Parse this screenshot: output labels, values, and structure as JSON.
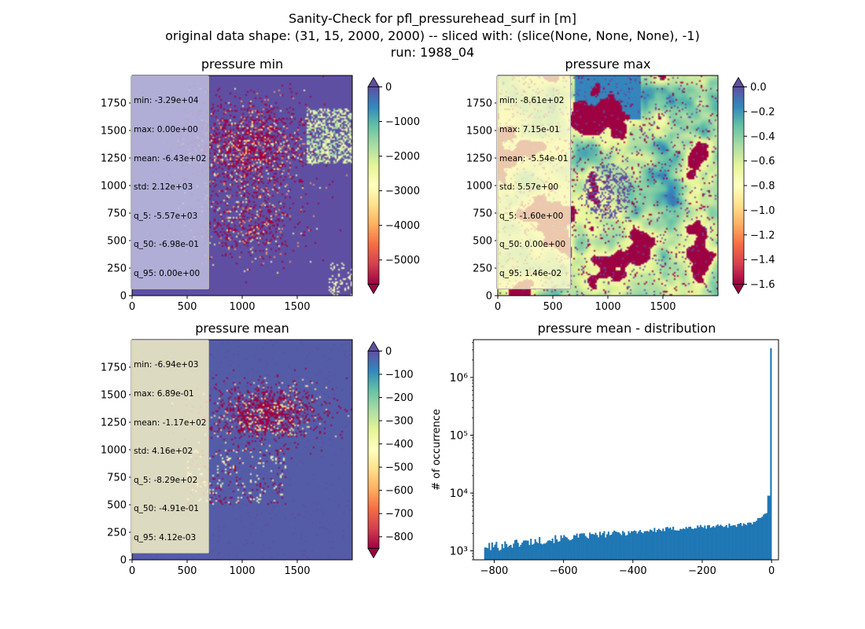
{
  "figure": {
    "title_lines": [
      "Sanity-Check for pfl_pressurehead_surf in [m]",
      "original data shape: (31, 15, 2000, 2000) -- sliced with: (slice(None, None, None), -1)",
      "run: 1988_04"
    ]
  },
  "colors": {
    "spectral": [
      "#9e0142",
      "#d53e4f",
      "#f46d43",
      "#fdae61",
      "#fee08b",
      "#ffffbf",
      "#e6f598",
      "#abdda4",
      "#66c2a5",
      "#3288bd",
      "#5e4fa2"
    ],
    "histogram_bar": "#1f77b4"
  },
  "chart_data": [
    {
      "type": "heatmap",
      "title": "pressure min",
      "xlim": [
        0,
        2000
      ],
      "ylim": [
        0,
        2000
      ],
      "xticks": [
        0,
        500,
        1000,
        1500
      ],
      "yticks": [
        0,
        250,
        500,
        750,
        1000,
        1250,
        1500,
        1750
      ],
      "colorbar": {
        "min": -5700,
        "max": 0,
        "ticks": [
          0,
          -1000,
          -2000,
          -3000,
          -4000,
          -5000
        ],
        "tick_labels": [
          "0",
          "−1000",
          "−2000",
          "−3000",
          "−4000",
          "−5000"
        ],
        "extend": "both"
      },
      "stats": [
        "min: -3.29e+04",
        "max: 0.00e+00",
        "mean: -6.43e+02",
        "std: 2.12e+03",
        "q_5: -5.57e+03",
        "q_50: -6.98e-01",
        "q_95: 0.00e+00"
      ],
      "background_value": 0
    },
    {
      "type": "heatmap",
      "title": "pressure max",
      "xlim": [
        0,
        2000
      ],
      "ylim": [
        0,
        2000
      ],
      "xticks": [
        0,
        500,
        1000,
        1500
      ],
      "yticks": [
        0,
        250,
        500,
        750,
        1000,
        1250,
        1500,
        1750
      ],
      "colorbar": {
        "min": -1.6,
        "max": 0.0,
        "ticks": [
          0.0,
          -0.2,
          -0.4,
          -0.6,
          -0.8,
          -1.0,
          -1.2,
          -1.4,
          -1.6
        ],
        "tick_labels": [
          "0.0",
          "−0.2",
          "−0.4",
          "−0.6",
          "−0.8",
          "−1.0",
          "−1.2",
          "−1.4",
          "−1.6"
        ],
        "extend": "both"
      },
      "stats": [
        "min: -8.61e+02",
        "max: 7.15e-01",
        "mean: -5.54e-01",
        "std: 5.57e+00",
        "q_5: -1.60e+00",
        "q_50: 0.00e+00",
        "q_95: 1.46e-02"
      ],
      "background_value": -0.3
    },
    {
      "type": "heatmap",
      "title": "pressure mean",
      "xlim": [
        0,
        2000
      ],
      "ylim": [
        0,
        2000
      ],
      "xticks": [
        0,
        500,
        1000,
        1500
      ],
      "yticks": [
        0,
        250,
        500,
        750,
        1000,
        1250,
        1500,
        1750
      ],
      "colorbar": {
        "min": -850,
        "max": 0,
        "ticks": [
          0,
          -100,
          -200,
          -300,
          -400,
          -500,
          -600,
          -700,
          -800
        ],
        "tick_labels": [
          "0",
          "−100",
          "−200",
          "−300",
          "−400",
          "−500",
          "−600",
          "−700",
          "−800"
        ],
        "extend": "both"
      },
      "stats": [
        "min: -6.94e+03",
        "max: 6.89e-01",
        "mean: -1.17e+02",
        "std: 4.16e+02",
        "q_5: -8.29e+02",
        "q_50: -4.91e-01",
        "q_95: 4.12e-03"
      ],
      "background_value": -20
    },
    {
      "type": "bar",
      "title": "pressure mean - distribution",
      "ylabel": "# of occurrence",
      "xlabel": "",
      "xlim": [
        -860,
        20
      ],
      "xticks": [
        -800,
        -600,
        -400,
        -200,
        0
      ],
      "xtick_labels": [
        "−800",
        "−600",
        "−400",
        "−200",
        "0"
      ],
      "yscale": "log",
      "ylim": [
        700,
        4500000
      ],
      "yticks": [
        1000,
        10000,
        100000,
        1000000
      ],
      "ytick_labels": [
        "10³",
        "10⁴",
        "10⁵",
        "10⁶"
      ],
      "bin_range": [
        -829,
        0
      ],
      "bin_count": 200,
      "spike": {
        "x": 0,
        "value": 3200000
      },
      "notable_bins": [
        {
          "x": -4,
          "value": 21000
        },
        {
          "x": -8,
          "value": 9000
        }
      ]
    }
  ]
}
